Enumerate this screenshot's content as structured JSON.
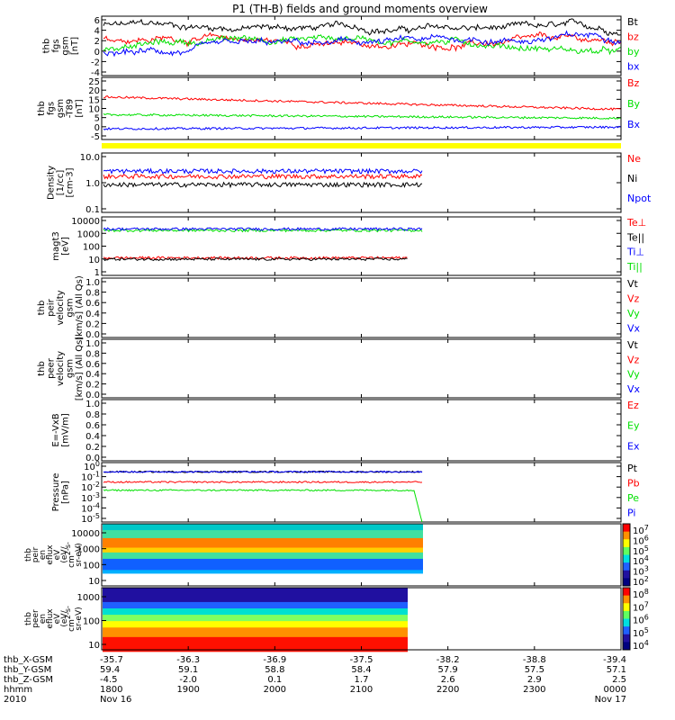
{
  "title": "P1 (TH-B) fields and ground moments overview",
  "colors": {
    "black": "#000000",
    "red": "#ff0000",
    "green": "#00e000",
    "blue": "#0000ff",
    "yellow": "#ffff00"
  },
  "chart_data": {
    "type": "line",
    "x_ticks": [
      "1800",
      "1900",
      "2000",
      "2100",
      "2200",
      "2300",
      "0000"
    ],
    "panels": [
      {
        "id": "fgs",
        "ylabel": [
          "thb",
          "fgs",
          "gsm",
          "[nT]"
        ],
        "yticks": [
          "6",
          "4",
          "2",
          "0",
          "-2",
          "-4"
        ],
        "ylim": [
          -4.5,
          6.5
        ],
        "series": [
          {
            "name": "Bt",
            "color": "#000000",
            "level": 4.8
          },
          {
            "name": "bz",
            "color": "#ff0000",
            "level": 2.2
          },
          {
            "name": "by",
            "color": "#00e000",
            "level": 0.8
          },
          {
            "name": "bx",
            "color": "#0000ff",
            "level": -0.5
          }
        ],
        "legend": [
          "Bt",
          "bz",
          "by",
          "bx"
        ]
      },
      {
        "id": "t89",
        "ylabel": [
          "thb",
          "fgs",
          "gsm",
          "-T89",
          "[nT]"
        ],
        "yticks": [
          "25",
          "20",
          "15",
          "10",
          "5",
          "0",
          "-5"
        ],
        "ylim": [
          -8,
          27
        ],
        "series": [
          {
            "name": "Bz",
            "color": "#ff0000",
            "level": 16
          },
          {
            "name": "By",
            "color": "#00e000",
            "level": 6
          },
          {
            "name": "Bx",
            "color": "#0000ff",
            "level": -2
          }
        ],
        "legend": [
          "Bz",
          "By",
          "Bx"
        ]
      },
      {
        "id": "density",
        "ylabel": [
          "Density",
          "[1/cc]",
          "[cm-3]"
        ],
        "yticks": [
          "10.0",
          "1.0",
          "0.1"
        ],
        "ylim": [
          0.1,
          20
        ],
        "log": true,
        "series": [
          {
            "name": "Ne",
            "color": "#ff0000",
            "level": 2.5
          },
          {
            "name": "Ni",
            "color": "#000000",
            "level": 1.2
          },
          {
            "name": "Npot",
            "color": "#0000ff",
            "level": 4.0
          }
        ],
        "legend": [
          "Ne",
          "Ni",
          "Npot"
        ],
        "legend_colors": [
          "#ff0000",
          "#000000",
          "#0000ff"
        ]
      },
      {
        "id": "temp",
        "ylabel": [
          "magt3",
          "[eV]"
        ],
        "yticks": [
          "10000",
          "1000",
          "100",
          "10",
          "1"
        ],
        "ylim": [
          1,
          10000
        ],
        "log": true,
        "series": [
          {
            "name": "Ti||",
            "color": "#00e000",
            "level": 1200
          },
          {
            "name": "Ti⊥",
            "color": "#0000ff",
            "level": 1500
          },
          {
            "name": "Te⊥",
            "color": "#ff0000",
            "level": 16
          },
          {
            "name": "Te||",
            "color": "#000000",
            "level": 13
          }
        ],
        "legend": [
          "Te⊥",
          "Te||",
          "Ti⊥",
          "Ti||"
        ],
        "legend_colors": [
          "#ff0000",
          "#000000",
          "#0000ff",
          "#00e000"
        ]
      },
      {
        "id": "peir_vel",
        "ylabel": [
          "thb",
          "peir",
          "velocity",
          "gsm",
          "[km/s] (All Qs)"
        ],
        "yticks": [
          "1.0",
          "0.8",
          "0.6",
          "0.4",
          "0.2",
          "0.0"
        ],
        "ylim": [
          0,
          1
        ],
        "series": [],
        "legend": [
          "Vt",
          "Vz",
          "Vy",
          "Vx"
        ],
        "legend_colors": [
          "#000000",
          "#ff0000",
          "#00e000",
          "#0000ff"
        ]
      },
      {
        "id": "peer_vel",
        "ylabel": [
          "thb",
          "peer",
          "velocity",
          "gsm",
          "[km/s] (All Qs)"
        ],
        "yticks": [
          "1.0",
          "0.8",
          "0.6",
          "0.4",
          "0.2",
          "0.0"
        ],
        "ylim": [
          0,
          1
        ],
        "series": [],
        "legend": [
          "Vt",
          "Vz",
          "Vy",
          "Vx"
        ],
        "legend_colors": [
          "#000000",
          "#ff0000",
          "#00e000",
          "#0000ff"
        ]
      },
      {
        "id": "efield",
        "ylabel": [
          "E=-VxB",
          "[mV/m]"
        ],
        "yticks": [
          "1.0",
          "0.8",
          "0.6",
          "0.4",
          "0.2",
          "0.0"
        ],
        "ylim": [
          0,
          1
        ],
        "series": [],
        "legend": [
          "Ez",
          "Ey",
          "Ex"
        ],
        "legend_colors": [
          "#ff0000",
          "#00e000",
          "#0000ff"
        ]
      },
      {
        "id": "pressure",
        "ylabel": [
          "Pressure",
          "[nPa]"
        ],
        "yticks": [
          "10^0",
          "10^-1",
          "10^-2",
          "10^-3",
          "10^-4",
          "10^-5"
        ],
        "ylim": [
          -5.5,
          0.3
        ],
        "log": true,
        "series": [
          {
            "name": "Pt",
            "color": "#000000",
            "level": -0.6
          },
          {
            "name": "Pb",
            "color": "#ff0000",
            "level": -1.6
          },
          {
            "name": "Pe",
            "color": "#00e000",
            "level": -2.4
          },
          {
            "name": "Pi",
            "color": "#0000ff",
            "level": -0.6
          }
        ],
        "legend": [
          "Pt",
          "Pb",
          "Pe",
          "Pi"
        ],
        "legend_colors": [
          "#000000",
          "#ff0000",
          "#00e000",
          "#0000ff"
        ]
      }
    ],
    "spectrograms": [
      {
        "id": "peir_en",
        "ylabel": [
          "thb",
          "peir",
          "en",
          "eflux",
          "eV",
          "(eV/",
          "cm^2-s-",
          "sr-eV)"
        ],
        "yticks": [
          "10000",
          "1000",
          "100",
          "10"
        ],
        "ylim": [
          10,
          10000
        ],
        "colorbar_ticks": [
          "10^7",
          "10^6",
          "10^5",
          "10^4",
          "10^3",
          "10^2"
        ]
      },
      {
        "id": "peer_en",
        "ylabel": [
          "thb",
          "peer",
          "en",
          "eflux",
          "eV",
          "(eV/",
          "cm^2-s-",
          "sr-eV)"
        ],
        "yticks": [
          "1000",
          "100",
          "10"
        ],
        "ylim": [
          5,
          5000
        ],
        "colorbar_ticks": [
          "10^8",
          "10^7",
          "10^6",
          "10^5",
          "10^4"
        ]
      }
    ],
    "ephemeris": [
      {
        "label": "thb_X-GSM",
        "values": [
          "-35.7",
          "-36.3",
          "-36.9",
          "-37.5",
          "-38.2",
          "-38.8",
          "-39.4"
        ]
      },
      {
        "label": "thb_Y-GSM",
        "values": [
          "59.4",
          "59.1",
          "58.8",
          "58.4",
          "57.9",
          "57.5",
          "57.1"
        ]
      },
      {
        "label": "thb_Z-GSM",
        "values": [
          "-4.5",
          "-2.0",
          "0.1",
          "1.7",
          "2.6",
          "2.9",
          "2.5"
        ]
      },
      {
        "label": "hhmm",
        "values": [
          "1800",
          "1900",
          "2000",
          "2100",
          "2200",
          "2300",
          "0000"
        ]
      },
      {
        "label": "2010",
        "values": [
          "Nov 16",
          "",
          "",
          "",
          "",
          "",
          "Nov 17"
        ]
      }
    ]
  }
}
